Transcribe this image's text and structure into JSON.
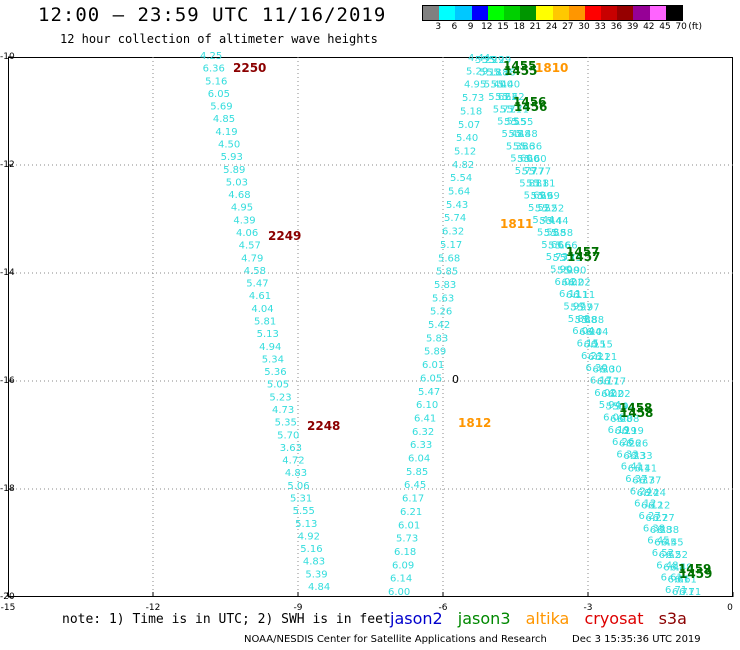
{
  "header": {
    "title": "12:00 – 23:59 UTC 11/16/2019",
    "subtitle": "12 hour collection of altimeter wave heights"
  },
  "scale": {
    "unit": "(ft)",
    "labels": [
      "3",
      "6",
      "9",
      "12",
      "15",
      "18",
      "21",
      "24",
      "27",
      "30",
      "33",
      "36",
      "39",
      "42",
      "45",
      "70"
    ],
    "colors": [
      "#808080",
      "#00ffff",
      "#00c8ff",
      "#0000ff",
      "#00ff00",
      "#00d000",
      "#009600",
      "#ffff00",
      "#ffc800",
      "#ff9600",
      "#ff0000",
      "#c80000",
      "#960000",
      "#960096",
      "#ff64ff",
      "#000000"
    ]
  },
  "axes": {
    "y_ticks": [
      "-10",
      "-12",
      "-14",
      "-16",
      "-18",
      "-20"
    ],
    "x_ticks": [
      "-15",
      "-12",
      "-9",
      "-6",
      "-3",
      "0"
    ]
  },
  "tracks": {
    "s3a_a": {
      "color": "#33dddd",
      "values": [
        "4.25",
        "6.36",
        "5.16",
        "6.05",
        "5.69",
        "4.85",
        "4.19",
        "4.50",
        "5.93",
        "5.89",
        "5.03",
        "4.68",
        "4.95",
        "4.39",
        "4.06",
        "4.57",
        "4.79",
        "4.58",
        "5.47",
        "4.61",
        "4.04",
        "5.81",
        "5.13",
        "4.94",
        "5.34",
        "5.36",
        "5.05",
        "5.23",
        "4.73",
        "5.35",
        "5.70",
        "3.63",
        "4.72",
        "4.83",
        "5.06",
        "5.31",
        "5.55",
        "5.13",
        "4.92",
        "5.16",
        "4.83",
        "5.39",
        "4.84"
      ]
    },
    "s3a_b": {
      "color": "#33dddd",
      "values": [
        "6.00",
        "6.14",
        "6.09",
        "6.18",
        "5.73",
        "6.01",
        "6.21",
        "6.17",
        "6.45",
        "5.85",
        "6.04",
        "6.33",
        "6.32",
        "6.41",
        "6.10",
        "5.47",
        "6.05",
        "6.01",
        "5.89",
        "5.83",
        "5.42",
        "5.26",
        "5.63",
        "5.83",
        "5.85",
        "5.68",
        "5.17",
        "6.32",
        "5.74",
        "5.43",
        "5.64",
        "5.54",
        "4.82",
        "5.12",
        "5.40",
        "5.07",
        "5.18",
        "5.73",
        "4.95",
        "5.29",
        "4.44"
      ]
    },
    "s3a_c": {
      "color": "#33dddd",
      "values": [
        "5.29",
        "5.18",
        "5.40",
        "5.62",
        "5.71",
        "5.55",
        "5.48",
        "5.36",
        "5.60",
        "5.77",
        "5.81",
        "5.69",
        "5.52",
        "5.44",
        "5.58",
        "5.66",
        "5.73",
        "5.90",
        "6.02",
        "6.11",
        "5.97",
        "5.88",
        "6.04",
        "6.15",
        "6.21",
        "6.30",
        "6.17",
        "6.02",
        "5.94",
        "6.08",
        "6.19",
        "6.26",
        "6.33",
        "6.41",
        "6.37",
        "6.24",
        "6.12",
        "6.27",
        "6.38",
        "6.45",
        "6.52",
        "6.48",
        "6.61",
        "6.71"
      ]
    },
    "time_labels": [
      {
        "text": "2250",
        "color": "#8b0000"
      },
      {
        "text": "2249",
        "color": "#8b0000"
      },
      {
        "text": "2248",
        "color": "#8b0000"
      },
      {
        "text": "1810",
        "color": "#ff9600"
      },
      {
        "text": "1811",
        "color": "#ff9600"
      },
      {
        "text": "1812",
        "color": "#ff9600"
      },
      {
        "text": "1455",
        "color": "#007000"
      },
      {
        "text": "1456",
        "color": "#007000"
      },
      {
        "text": "1457",
        "color": "#007000"
      },
      {
        "text": "1458",
        "color": "#007000"
      },
      {
        "text": "1459",
        "color": "#007000"
      }
    ],
    "marker": "0"
  },
  "note": "note: 1) Time is in UTC; 2) SWH is in feet",
  "satellites": [
    {
      "name": "jason2",
      "color": "#0000cc"
    },
    {
      "name": "jason3",
      "color": "#008800"
    },
    {
      "name": "altika",
      "color": "#ff9600"
    },
    {
      "name": "cryosat",
      "color": "#dd0000"
    },
    {
      "name": "s3a",
      "color": "#8b0000"
    }
  ],
  "footer": {
    "credit": "NOAA/NESDIS Center for Satellite Applications and Research",
    "stamp": "Dec  3 15:35:36 UTC 2019"
  }
}
